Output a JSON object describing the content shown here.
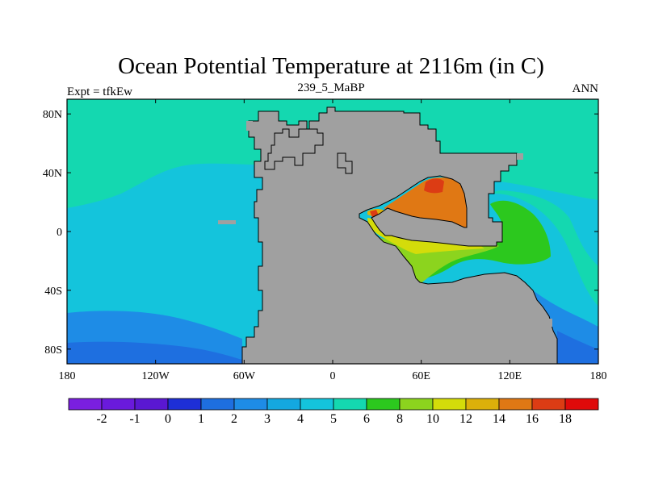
{
  "title": "Ocean Potential Temperature at 2116m (in C)",
  "subtitle": "239_5_MaBP",
  "left_label": "Expt = tfkEw",
  "right_label": "ANN",
  "colors": {
    "land": "#a0a0a0",
    "background": "#ffffff",
    "outline": "#000000"
  },
  "map": {
    "x_ticks": [
      {
        "value": -180,
        "label": "180"
      },
      {
        "value": -120,
        "label": "120W"
      },
      {
        "value": -60,
        "label": "60W"
      },
      {
        "value": 0,
        "label": "0"
      },
      {
        "value": 60,
        "label": "60E"
      },
      {
        "value": 120,
        "label": "120E"
      },
      {
        "value": 180,
        "label": "180"
      }
    ],
    "y_ticks": [
      {
        "value": 80,
        "label": "80N"
      },
      {
        "value": 40,
        "label": "40N"
      },
      {
        "value": 0,
        "label": "0"
      },
      {
        "value": -40,
        "label": "40S"
      },
      {
        "value": -80,
        "label": "80S"
      }
    ],
    "lon_range": [
      -180,
      180
    ],
    "lat_range": [
      -90,
      90
    ]
  },
  "colorbar": {
    "colors": [
      "#7a1fe0",
      "#6a1adc",
      "#5a18d2",
      "#1e2fd6",
      "#1e6fe0",
      "#1e8ce6",
      "#14a8e0",
      "#14c4dc",
      "#14d8b0",
      "#2cc81e",
      "#8cd41e",
      "#d4dc0a",
      "#dcb00a",
      "#e07814",
      "#dc3c14",
      "#e00a0a"
    ],
    "labels": [
      "-2",
      "-1",
      "0",
      "1",
      "2",
      "3",
      "4",
      "5",
      "6",
      "8",
      "10",
      "12",
      "14",
      "16",
      "18"
    ]
  }
}
